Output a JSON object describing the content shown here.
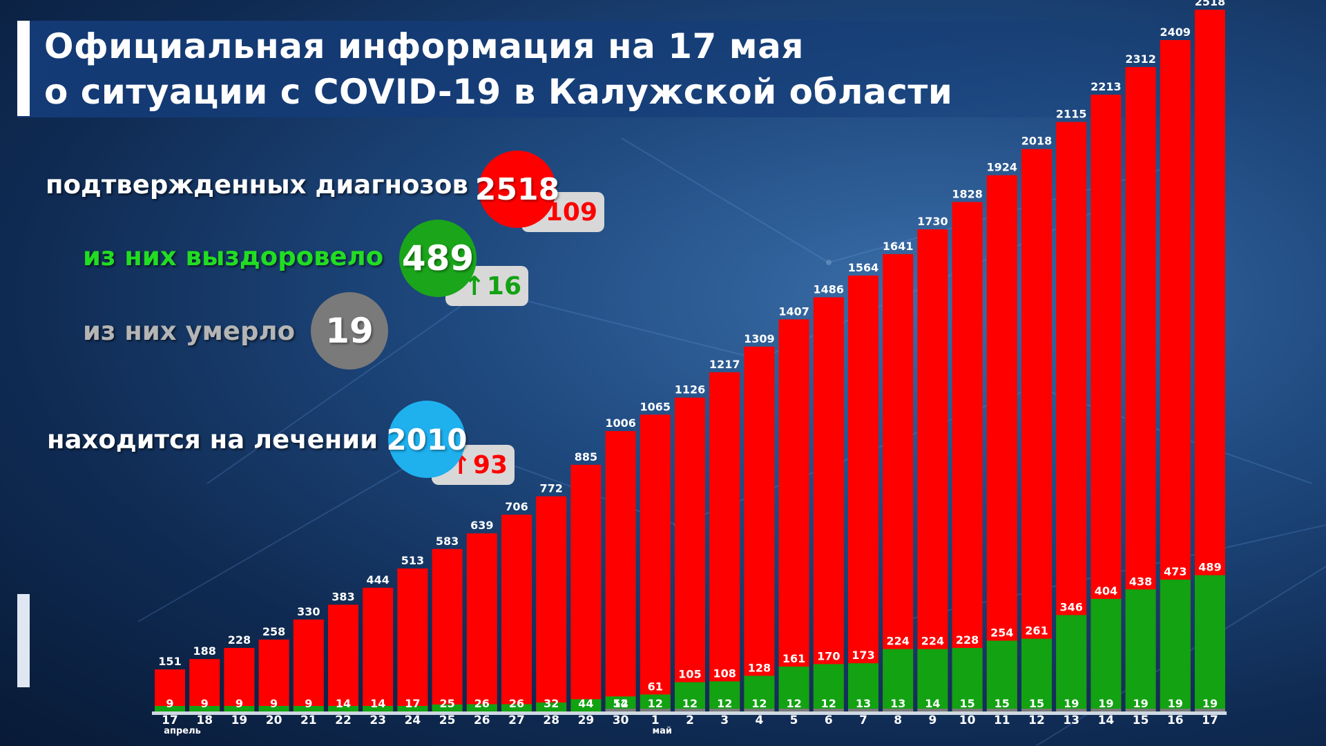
{
  "title": {
    "line1": "Официальная информация на 17 мая",
    "line2": "о ситуации с COVID-19 в Калужской области"
  },
  "stats": {
    "confirmed": {
      "label": "подтвержденных диагнозов",
      "value": "2518",
      "delta": "109",
      "color": "#ff0000"
    },
    "recovered": {
      "label": "из них выздоровело",
      "value": "489",
      "delta": "16",
      "color": "#1aa51a"
    },
    "died": {
      "label": "из них умерло",
      "value": "19",
      "color": "#7a7a7a"
    },
    "treatment": {
      "label": "находится на лечении",
      "value": "2010",
      "delta": "93",
      "color": "#1fb0ee"
    }
  },
  "chart_data": {
    "type": "bar",
    "categories": [
      "17",
      "18",
      "19",
      "20",
      "21",
      "22",
      "23",
      "24",
      "25",
      "26",
      "27",
      "28",
      "29",
      "30",
      "1",
      "2",
      "3",
      "4",
      "5",
      "6",
      "7",
      "8",
      "9",
      "10",
      "11",
      "12",
      "13",
      "14",
      "15",
      "16",
      "17"
    ],
    "month_labels": {
      "april": "апрель",
      "may": "май"
    },
    "series": [
      {
        "name": "",
        "color": "#ff0000",
        "values": [
          151,
          188,
          228,
          258,
          330,
          383,
          444,
          513,
          583,
          639,
          706,
          772,
          885,
          1006,
          1065,
          1126,
          1217,
          1309,
          1407,
          1486,
          1564,
          1641,
          1730,
          1828,
          1924,
          2018,
          2115,
          2213,
          2312,
          2409,
          2518
        ]
      },
      {
        "name": "",
        "color": "#12a212",
        "values": [
          9,
          9,
          9,
          9,
          9,
          14,
          14,
          17,
          25,
          26,
          26,
          32,
          44,
          54,
          61,
          105,
          108,
          128,
          161,
          170,
          173,
          224,
          224,
          228,
          254,
          261,
          346,
          404,
          438,
          473,
          489
        ]
      },
      {
        "name": "",
        "color": "#7a7a7a",
        "values": [
          null,
          null,
          null,
          null,
          null,
          null,
          null,
          null,
          null,
          null,
          null,
          null,
          null,
          12,
          12,
          12,
          12,
          12,
          12,
          12,
          13,
          13,
          14,
          15,
          15,
          15,
          19,
          19,
          19,
          19,
          19
        ]
      }
    ],
    "ylim": [
      0,
      2518
    ]
  }
}
